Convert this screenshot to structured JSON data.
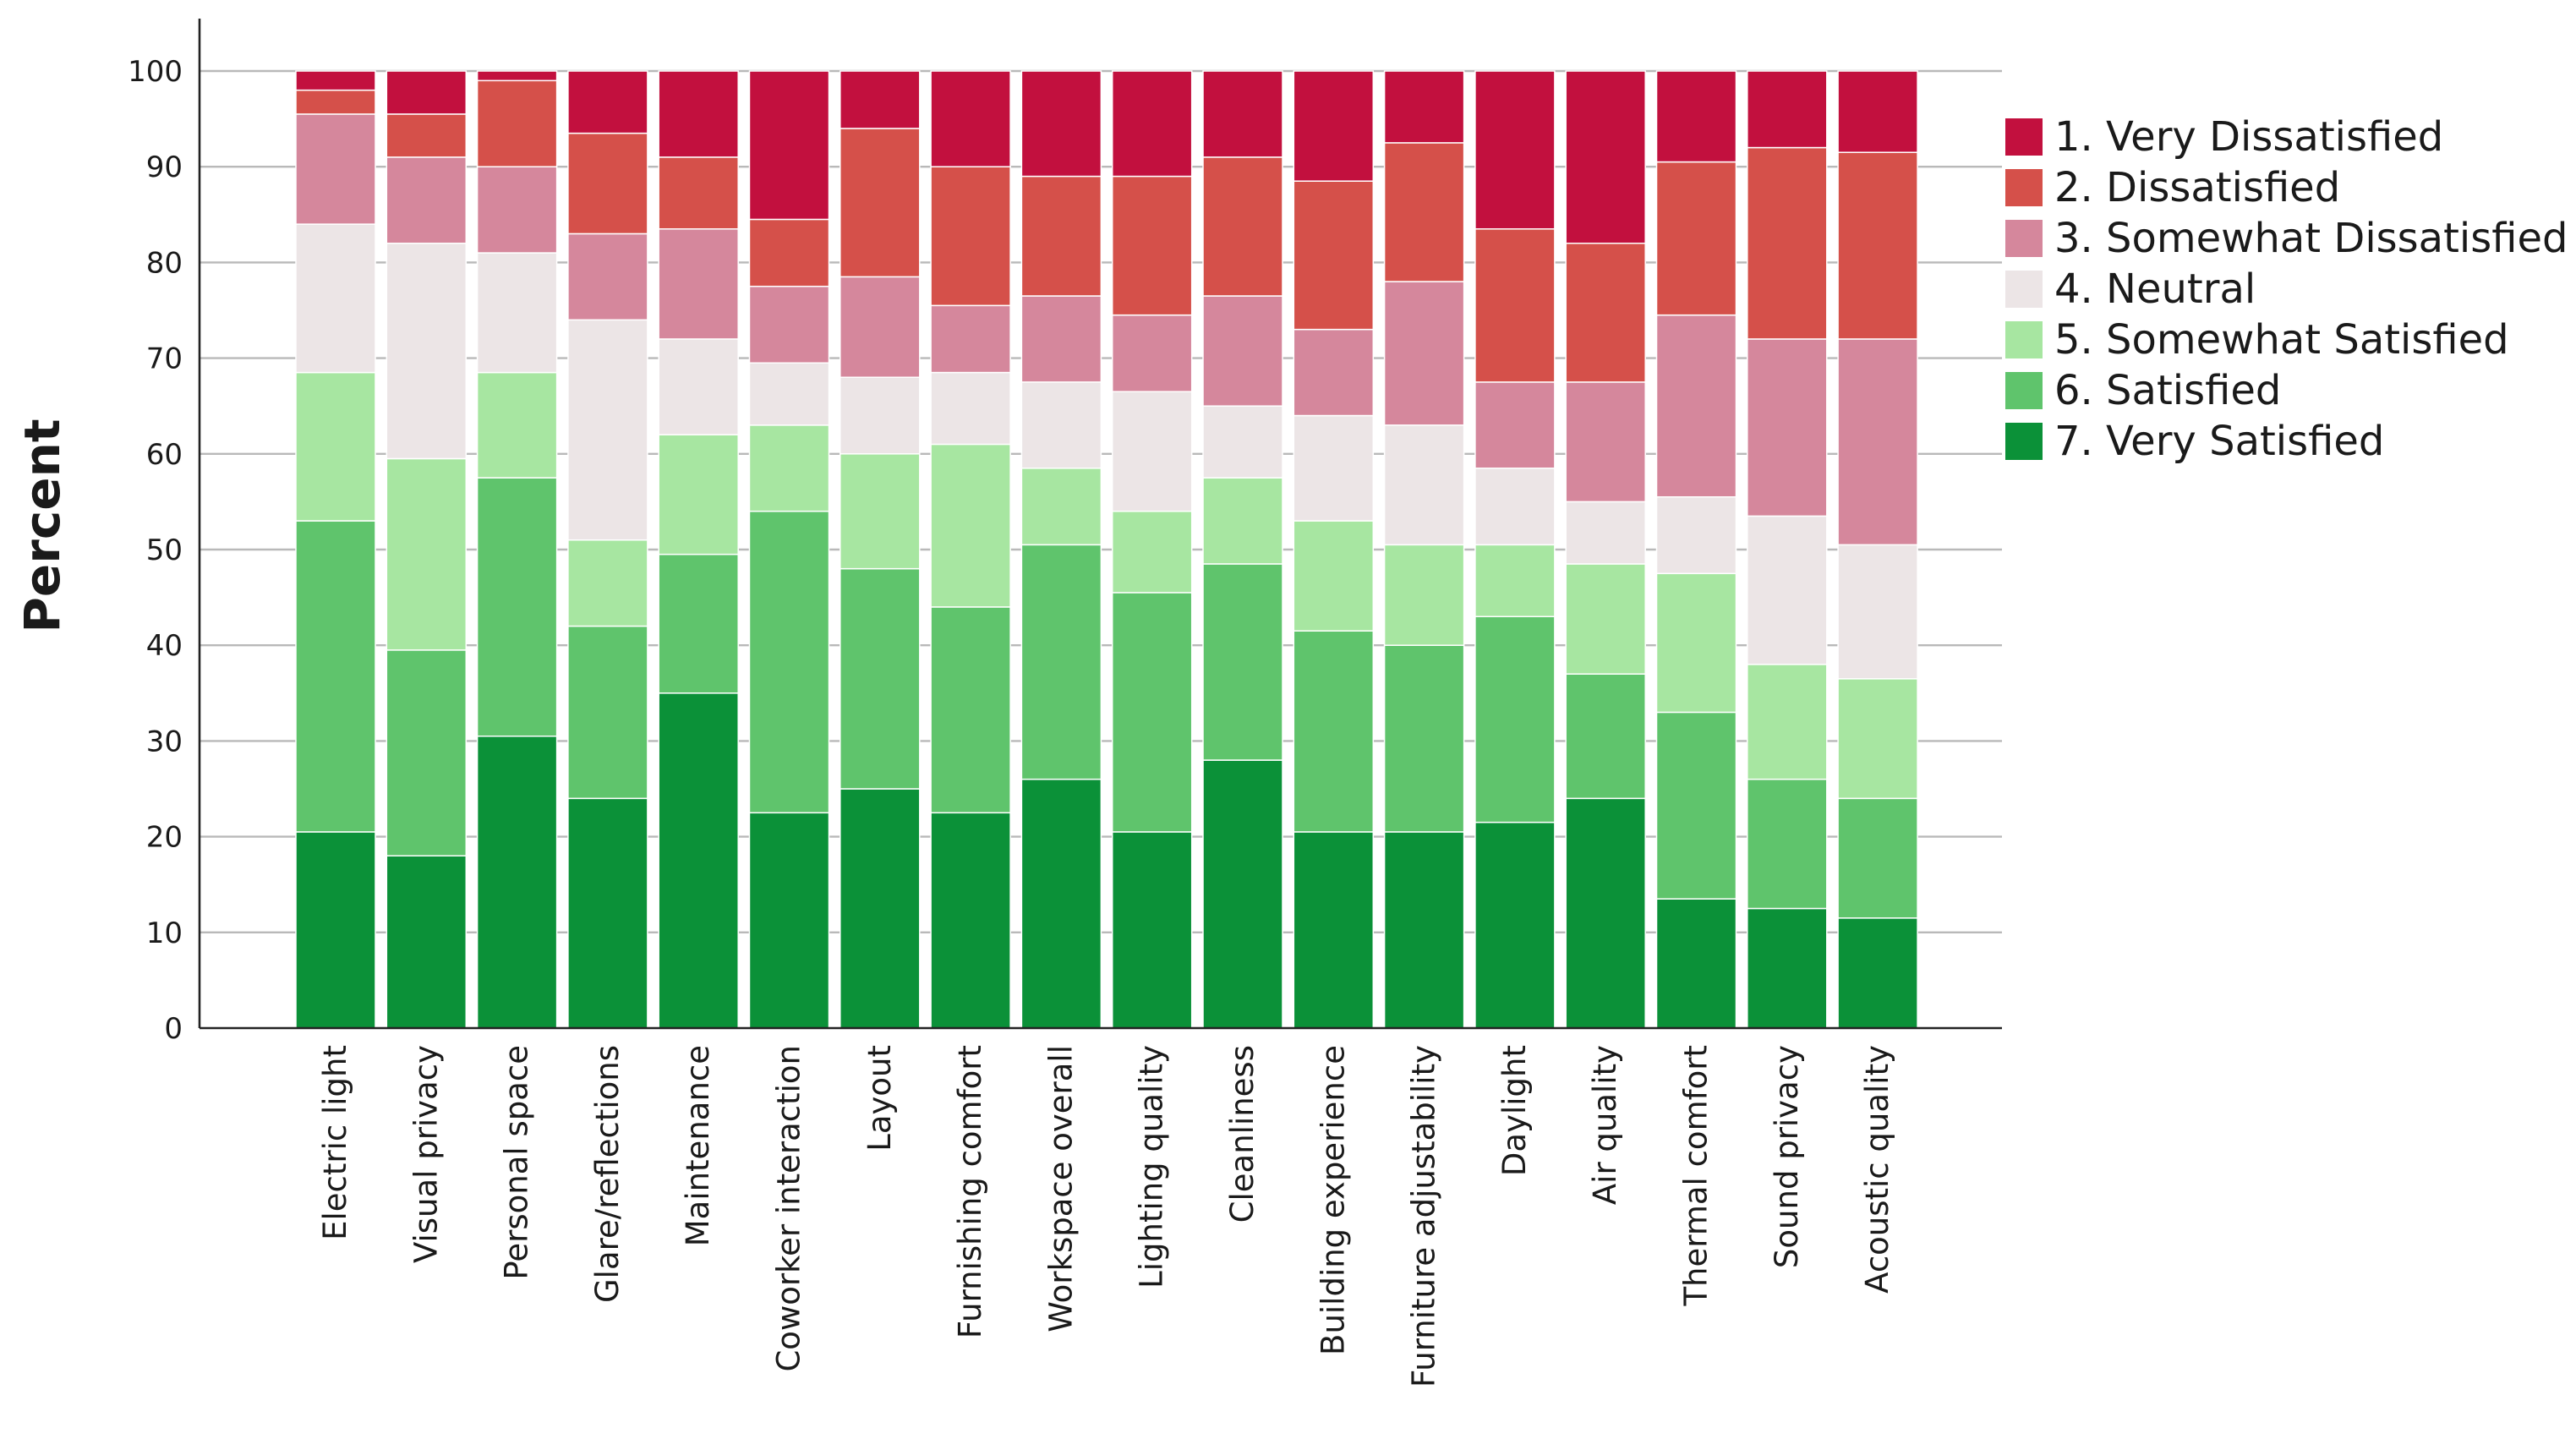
{
  "chart_data": {
    "type": "bar",
    "stacked": true,
    "title": "",
    "xlabel": "",
    "ylabel": "Percent",
    "ylim": [
      0,
      100
    ],
    "yticks": [
      0,
      10,
      20,
      30,
      40,
      50,
      60,
      70,
      80,
      90,
      100
    ],
    "grid": true,
    "legend_position": "right",
    "categories": [
      "Electric light",
      "Visual privacy",
      "Personal space",
      "Glare/reflections",
      "Maintenance",
      "Coworker interaction",
      "Layout",
      "Furnishing comfort",
      "Workspace overall",
      "Lighting quality",
      "Cleanliness",
      "Building experience",
      "Furniture adjustability",
      "Daylight",
      "Air quality",
      "Thermal comfort",
      "Sound privacy",
      "Acoustic quality"
    ],
    "series": [
      {
        "name": "7. Very Satisfied",
        "color": "#0b9138",
        "values": [
          20.5,
          18,
          30.5,
          24,
          35,
          22.5,
          25,
          22.5,
          26,
          20.5,
          28,
          20.5,
          20.5,
          21.5,
          24,
          13.5,
          12.5,
          11.5
        ]
      },
      {
        "name": "6. Satisfied",
        "color": "#5fc46c",
        "values": [
          32.5,
          21.5,
          27,
          18,
          14.5,
          31.5,
          23,
          21.5,
          24.5,
          25,
          20.5,
          21,
          19.5,
          21.5,
          13,
          19.5,
          13.5,
          12.5
        ]
      },
      {
        "name": "5. Somewhat Satisfied",
        "color": "#a7e6a1",
        "values": [
          15.5,
          20,
          11,
          9,
          12.5,
          9,
          12,
          17,
          8,
          8.5,
          9,
          11.5,
          10.5,
          7.5,
          11.5,
          14.5,
          12,
          12.5
        ]
      },
      {
        "name": "4. Neutral",
        "color": "#ece5e6",
        "values": [
          15.5,
          22.5,
          12.5,
          23,
          10,
          6.5,
          8,
          7.5,
          9,
          12.5,
          7.5,
          11,
          12.5,
          8,
          6.5,
          8,
          15.5,
          14
        ]
      },
      {
        "name": "3. Somewhat Dissatisfied",
        "color": "#d5879c",
        "values": [
          11.5,
          9,
          9,
          9,
          11.5,
          8,
          10.5,
          7,
          9,
          8,
          11.5,
          9,
          15,
          9,
          12.5,
          19,
          18.5,
          21.5
        ]
      },
      {
        "name": "2. Dissatisfied",
        "color": "#d5504a",
        "values": [
          2.5,
          4.5,
          9,
          10.5,
          7.5,
          7,
          15.5,
          14.5,
          12.5,
          14.5,
          14.5,
          15.5,
          14.5,
          16,
          14.5,
          16,
          20,
          19.5
        ]
      },
      {
        "name": "1. Very Dissatisfied",
        "color": "#c2103e",
        "values": [
          2,
          4.5,
          1,
          6.5,
          9,
          15.5,
          6,
          10,
          11,
          11,
          9,
          11.5,
          8,
          16.5,
          18,
          10,
          8,
          9
        ]
      }
    ],
    "legend_order": [
      "1. Very Dissatisfied",
      "2. Dissatisfied",
      "3. Somewhat Dissatisfied",
      "4. Neutral",
      "5. Somewhat Satisfied",
      "6. Satisfied",
      "7. Very Satisfied"
    ]
  }
}
